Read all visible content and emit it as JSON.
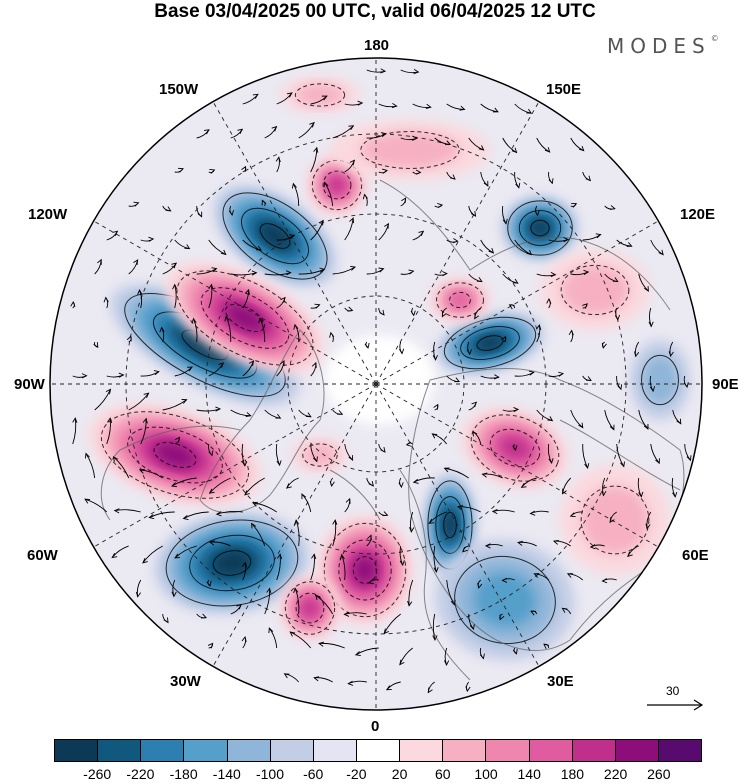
{
  "header": {
    "title": "Base 03/04/2025 00 UTC, valid 06/04/2025 12 UTC",
    "brand": "MODES",
    "brand_mark": "©"
  },
  "map": {
    "projection": "polar stereographic (north)",
    "longitude_labels": {
      "top": "180",
      "bottom": "0",
      "left": "90W",
      "right": "90E",
      "top_left": "150W",
      "top_right": "150E",
      "upper_left": "120W",
      "upper_right": "120E",
      "lower_left": "60W",
      "lower_right": "60E",
      "bottom_left": "30W",
      "bottom_right": "30E"
    },
    "graticule": "dashed latitude circles and meridians every 30°",
    "vectors": "wind arrows",
    "reference_vector": "30"
  },
  "colorbar": {
    "colors": [
      "#0c3a56",
      "#11587f",
      "#2d7fb1",
      "#559fcb",
      "#8fb5d8",
      "#c3cde6",
      "#e4e4f2",
      "#ffffff",
      "#fbd9de",
      "#f6b0c2",
      "#ef86ad",
      "#e05b9f",
      "#c12f8d",
      "#8d0e7b",
      "#590a6e"
    ],
    "ticks": [
      "-260",
      "-220",
      "-180",
      "-140",
      "-100",
      "-60",
      "-20",
      "20",
      "60",
      "100",
      "140",
      "180",
      "220",
      "260"
    ]
  },
  "colors": {
    "land_outline": "#606060",
    "graticule": "#222222"
  }
}
